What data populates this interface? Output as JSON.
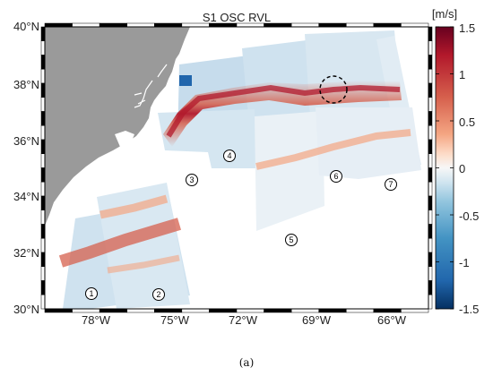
{
  "map": {
    "title": "S1 OSC RVL",
    "lat_labels": [
      "40°N",
      "38°N",
      "36°N",
      "34°N",
      "32°N",
      "30°N"
    ],
    "lon_labels": [
      "78°W",
      "75°W",
      "72°W",
      "69°W",
      "66°W"
    ],
    "colorbar": {
      "unit": "[m/s]",
      "tick_labels": [
        "1.5",
        "1",
        "0.5",
        "0",
        "-0.5",
        "-1",
        "-1.5"
      ],
      "range": [
        -1.5,
        1.5
      ],
      "colormap": [
        "#053061",
        "#2166ac",
        "#4393c3",
        "#92c5de",
        "#d1e5f0",
        "#f7f7f7",
        "#fddbc7",
        "#f4a582",
        "#d6604d",
        "#b2182b",
        "#67001f"
      ]
    },
    "region_markers": [
      "1",
      "2",
      "3",
      "4",
      "5",
      "6",
      "7"
    ],
    "land_color": "#9a9a9a",
    "annotation": "dashed circle near 68°W, 38°N"
  },
  "caption": "(a)"
}
